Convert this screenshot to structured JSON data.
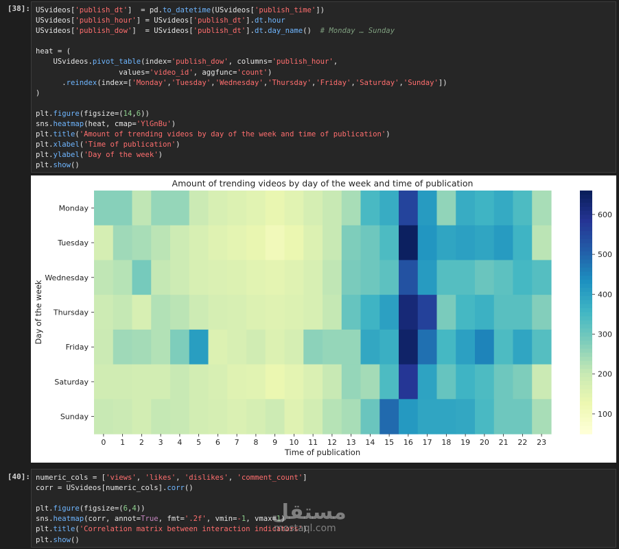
{
  "cells": [
    {
      "prompt": "[38]:",
      "lines": [
        [
          [
            "var",
            "USvideos["
          ],
          [
            "str",
            "'publish_dt'"
          ],
          [
            "var",
            "]  = pd."
          ],
          [
            "fn",
            "to_datetime"
          ],
          [
            "var",
            "(USvideos["
          ],
          [
            "str",
            "'publish_time'"
          ],
          [
            "var",
            "])"
          ]
        ],
        [
          [
            "var",
            "USvideos["
          ],
          [
            "str",
            "'publish_hour'"
          ],
          [
            "var",
            "] = USvideos["
          ],
          [
            "str",
            "'publish_dt'"
          ],
          [
            "var",
            "]."
          ],
          [
            "fn",
            "dt"
          ],
          [
            "var",
            "."
          ],
          [
            "fn",
            "hour"
          ]
        ],
        [
          [
            "var",
            "USvideos["
          ],
          [
            "str",
            "'publish_dow'"
          ],
          [
            "var",
            "]  = USvideos["
          ],
          [
            "str",
            "'publish_dt'"
          ],
          [
            "var",
            "]."
          ],
          [
            "fn",
            "dt"
          ],
          [
            "var",
            "."
          ],
          [
            "fn",
            "day_name"
          ],
          [
            "var",
            "()  "
          ],
          [
            "cm",
            "# Monday … Sunday"
          ]
        ],
        [],
        [
          [
            "var",
            "heat = ("
          ]
        ],
        [
          [
            "var",
            "    USvideos."
          ],
          [
            "fn",
            "pivot_table"
          ],
          [
            "var",
            "(index="
          ],
          [
            "str",
            "'publish_dow'"
          ],
          [
            "var",
            ", columns="
          ],
          [
            "str",
            "'publish_hour'"
          ],
          [
            "var",
            ","
          ]
        ],
        [
          [
            "var",
            "                   values="
          ],
          [
            "str",
            "'video_id'"
          ],
          [
            "var",
            ", aggfunc="
          ],
          [
            "str",
            "'count'"
          ],
          [
            "var",
            ")"
          ]
        ],
        [
          [
            "var",
            "      ."
          ],
          [
            "fn",
            "reindex"
          ],
          [
            "var",
            "(index=["
          ],
          [
            "str",
            "'Monday'"
          ],
          [
            "var",
            ","
          ],
          [
            "str",
            "'Tuesday'"
          ],
          [
            "var",
            ","
          ],
          [
            "str",
            "'Wednesday'"
          ],
          [
            "var",
            ","
          ],
          [
            "str",
            "'Thursday'"
          ],
          [
            "var",
            ","
          ],
          [
            "str",
            "'Friday'"
          ],
          [
            "var",
            ","
          ],
          [
            "str",
            "'Saturday'"
          ],
          [
            "var",
            ","
          ],
          [
            "str",
            "'Sunday'"
          ],
          [
            "var",
            "])"
          ]
        ],
        [
          [
            "var",
            ")"
          ]
        ],
        [],
        [
          [
            "var",
            "plt."
          ],
          [
            "fn",
            "figure"
          ],
          [
            "var",
            "(figsize=("
          ],
          [
            "num",
            "14"
          ],
          [
            "var",
            ","
          ],
          [
            "num",
            "6"
          ],
          [
            "var",
            "))"
          ]
        ],
        [
          [
            "var",
            "sns."
          ],
          [
            "fn",
            "heatmap"
          ],
          [
            "var",
            "(heat, cmap="
          ],
          [
            "str",
            "'YlGnBu'"
          ],
          [
            "var",
            ")"
          ]
        ],
        [
          [
            "var",
            "plt."
          ],
          [
            "fn",
            "title"
          ],
          [
            "var",
            "("
          ],
          [
            "str",
            "'Amount of trending videos by day of the week and time of publication'"
          ],
          [
            "var",
            ")"
          ]
        ],
        [
          [
            "var",
            "plt."
          ],
          [
            "fn",
            "xlabel"
          ],
          [
            "var",
            "("
          ],
          [
            "str",
            "'Time of publication'"
          ],
          [
            "var",
            ")"
          ]
        ],
        [
          [
            "var",
            "plt."
          ],
          [
            "fn",
            "ylabel"
          ],
          [
            "var",
            "("
          ],
          [
            "str",
            "'Day of the week'"
          ],
          [
            "var",
            ")"
          ]
        ],
        [
          [
            "var",
            "plt."
          ],
          [
            "fn",
            "show"
          ],
          [
            "var",
            "()"
          ]
        ]
      ]
    },
    {
      "prompt": "[40]:",
      "lines": [
        [
          [
            "var",
            "numeric_cols = ["
          ],
          [
            "str",
            "'views'"
          ],
          [
            "var",
            ", "
          ],
          [
            "str",
            "'likes'"
          ],
          [
            "var",
            ", "
          ],
          [
            "str",
            "'dislikes'"
          ],
          [
            "var",
            ", "
          ],
          [
            "str",
            "'comment_count'"
          ],
          [
            "var",
            "]"
          ]
        ],
        [
          [
            "var",
            "corr = USvideos[numeric_cols]."
          ],
          [
            "fn",
            "corr"
          ],
          [
            "var",
            "()"
          ]
        ],
        [],
        [
          [
            "var",
            "plt."
          ],
          [
            "fn",
            "figure"
          ],
          [
            "var",
            "(figsize=("
          ],
          [
            "num",
            "6"
          ],
          [
            "var",
            ","
          ],
          [
            "num",
            "4"
          ],
          [
            "var",
            "))"
          ]
        ],
        [
          [
            "var",
            "sns."
          ],
          [
            "fn",
            "heatmap"
          ],
          [
            "var",
            "(corr, annot="
          ],
          [
            "kw",
            "True"
          ],
          [
            "var",
            ", fmt="
          ],
          [
            "str",
            "'.2f'"
          ],
          [
            "var",
            ", vmin="
          ],
          [
            "op",
            "-"
          ],
          [
            "num",
            "1"
          ],
          [
            "var",
            ", vmax="
          ],
          [
            "num",
            "1"
          ],
          [
            "var",
            ")"
          ]
        ],
        [
          [
            "var",
            "plt."
          ],
          [
            "fn",
            "title"
          ],
          [
            "var",
            "("
          ],
          [
            "str",
            "'Correlation matrix between interaction indicators'"
          ],
          [
            "var",
            ")"
          ]
        ],
        [
          [
            "var",
            "plt."
          ],
          [
            "fn",
            "show"
          ],
          [
            "var",
            "()"
          ]
        ]
      ]
    }
  ],
  "chart_data": {
    "type": "heatmap",
    "title": "Amount of trending videos by day of the week and time of publication",
    "xlabel": "Time of publication",
    "ylabel": "Day of the week",
    "x": [
      0,
      1,
      2,
      3,
      4,
      5,
      6,
      7,
      8,
      9,
      10,
      11,
      12,
      13,
      14,
      15,
      16,
      17,
      18,
      19,
      20,
      21,
      22,
      23
    ],
    "y": [
      "Monday",
      "Tuesday",
      "Wednesday",
      "Thursday",
      "Friday",
      "Saturday",
      "Sunday"
    ],
    "colormap": "YlGnBu",
    "vmin": 50,
    "vmax": 660,
    "colorbar_ticks": [
      100,
      200,
      300,
      400,
      500,
      600
    ],
    "values": [
      [
        270,
        270,
        210,
        255,
        255,
        195,
        170,
        160,
        150,
        135,
        150,
        175,
        200,
        235,
        345,
        375,
        555,
        410,
        260,
        375,
        360,
        380,
        340,
        235
      ],
      [
        175,
        245,
        235,
        215,
        190,
        170,
        155,
        145,
        135,
        110,
        130,
        160,
        200,
        280,
        300,
        340,
        650,
        420,
        390,
        400,
        390,
        410,
        360,
        215
      ],
      [
        210,
        220,
        290,
        205,
        190,
        170,
        165,
        160,
        150,
        145,
        155,
        170,
        210,
        285,
        300,
        320,
        530,
        410,
        330,
        330,
        305,
        320,
        350,
        330
      ],
      [
        190,
        205,
        170,
        225,
        215,
        190,
        175,
        170,
        160,
        155,
        160,
        170,
        205,
        310,
        360,
        400,
        620,
        560,
        285,
        350,
        365,
        325,
        325,
        275
      ],
      [
        195,
        245,
        240,
        225,
        280,
        405,
        160,
        170,
        185,
        160,
        175,
        265,
        255,
        255,
        385,
        370,
        640,
        480,
        350,
        400,
        450,
        340,
        390,
        330
      ],
      [
        185,
        185,
        180,
        180,
        200,
        180,
        170,
        155,
        150,
        130,
        145,
        165,
        200,
        255,
        240,
        340,
        580,
        395,
        310,
        360,
        340,
        300,
        280,
        195
      ],
      [
        200,
        195,
        180,
        205,
        200,
        180,
        175,
        165,
        175,
        190,
        155,
        180,
        220,
        235,
        305,
        490,
        415,
        390,
        390,
        385,
        345,
        300,
        300,
        235
      ]
    ]
  },
  "watermark": {
    "arabic": "مستقل",
    "latin": "mostaql.com"
  }
}
